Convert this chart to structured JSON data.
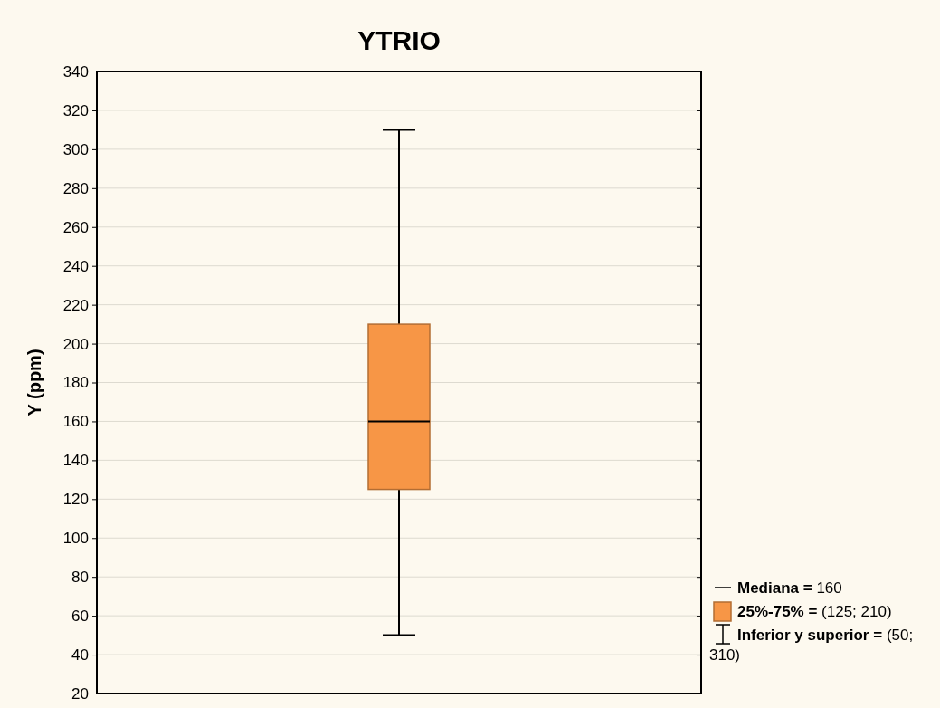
{
  "chart_data": {
    "type": "box",
    "title": "YTRIO",
    "ylabel": "Y (ppm)",
    "categories": [
      null
    ],
    "series": [
      {
        "color": "#f79646",
        "boxes": [
          {
            "low": 50,
            "q1": 125,
            "median": 160,
            "q3": 210,
            "high": 310
          }
        ]
      }
    ],
    "ylim": [
      20,
      340
    ],
    "yticks": [
      20,
      40,
      60,
      80,
      100,
      120,
      140,
      160,
      180,
      200,
      220,
      240,
      260,
      280,
      300,
      320,
      340
    ],
    "grid": "y",
    "annotations": [
      "Mediana = 160",
      "25%-75% = (125; 210)",
      "Inferior y superior = (50; 310)"
    ]
  }
}
